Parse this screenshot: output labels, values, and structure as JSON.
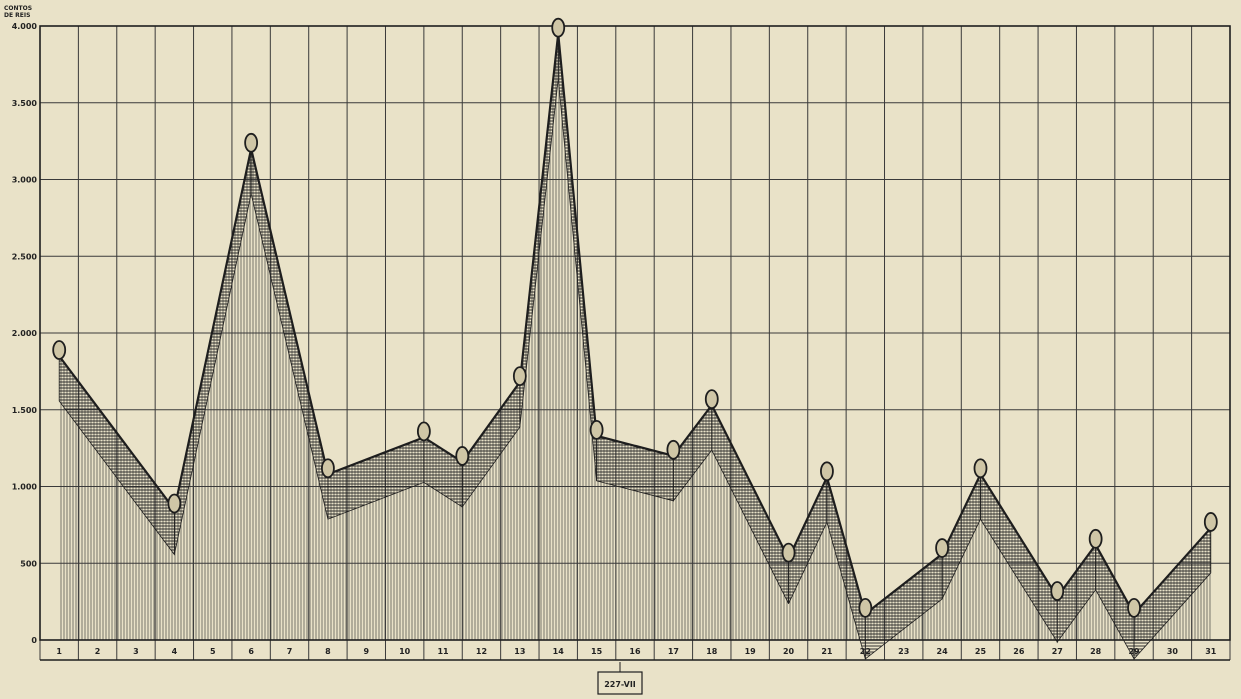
{
  "chart_data": {
    "type": "line",
    "unit_label": [
      "CONTOS",
      "DE REIS"
    ],
    "ylim": [
      0,
      4000
    ],
    "y_ticks": [
      {
        "value": 0,
        "label": "0"
      },
      {
        "value": 500,
        "label": "500"
      },
      {
        "value": 1000,
        "label": "1.000"
      },
      {
        "value": 1500,
        "label": "1.500"
      },
      {
        "value": 2000,
        "label": "2.000"
      },
      {
        "value": 2500,
        "label": "2.500"
      },
      {
        "value": 3000,
        "label": "3.000"
      },
      {
        "value": 3500,
        "label": "3.500"
      },
      {
        "value": 4000,
        "label": "4.000"
      }
    ],
    "categories": [
      "1",
      "2",
      "3",
      "4",
      "5",
      "6",
      "7",
      "8",
      "9",
      "10",
      "11",
      "12",
      "13",
      "14",
      "15",
      "16",
      "17",
      "18",
      "19",
      "20",
      "21",
      "22",
      "23",
      "24",
      "25",
      "26",
      "27",
      "28",
      "29",
      "30",
      "31"
    ],
    "points": [
      {
        "x": 1,
        "y": 1850
      },
      {
        "x": 4,
        "y": 850
      },
      {
        "x": 6,
        "y": 3200
      },
      {
        "x": 8,
        "y": 1080
      },
      {
        "x": 10.5,
        "y": 1320
      },
      {
        "x": 11.5,
        "y": 1160
      },
      {
        "x": 13,
        "y": 1680
      },
      {
        "x": 14,
        "y": 3950
      },
      {
        "x": 15,
        "y": 1330
      },
      {
        "x": 17,
        "y": 1200
      },
      {
        "x": 18,
        "y": 1530
      },
      {
        "x": 20,
        "y": 530
      },
      {
        "x": 21,
        "y": 1060
      },
      {
        "x": 22,
        "y": 170
      },
      {
        "x": 24,
        "y": 560
      },
      {
        "x": 25,
        "y": 1080
      },
      {
        "x": 27,
        "y": 280
      },
      {
        "x": 28,
        "y": 620
      },
      {
        "x": 29,
        "y": 170
      },
      {
        "x": 31,
        "y": 730
      }
    ],
    "grid": true,
    "caption": "227-VII"
  },
  "colors": {
    "paper": "#e9e2c8",
    "ink": "#1e1e1e",
    "grid": "#3a3a3a"
  }
}
